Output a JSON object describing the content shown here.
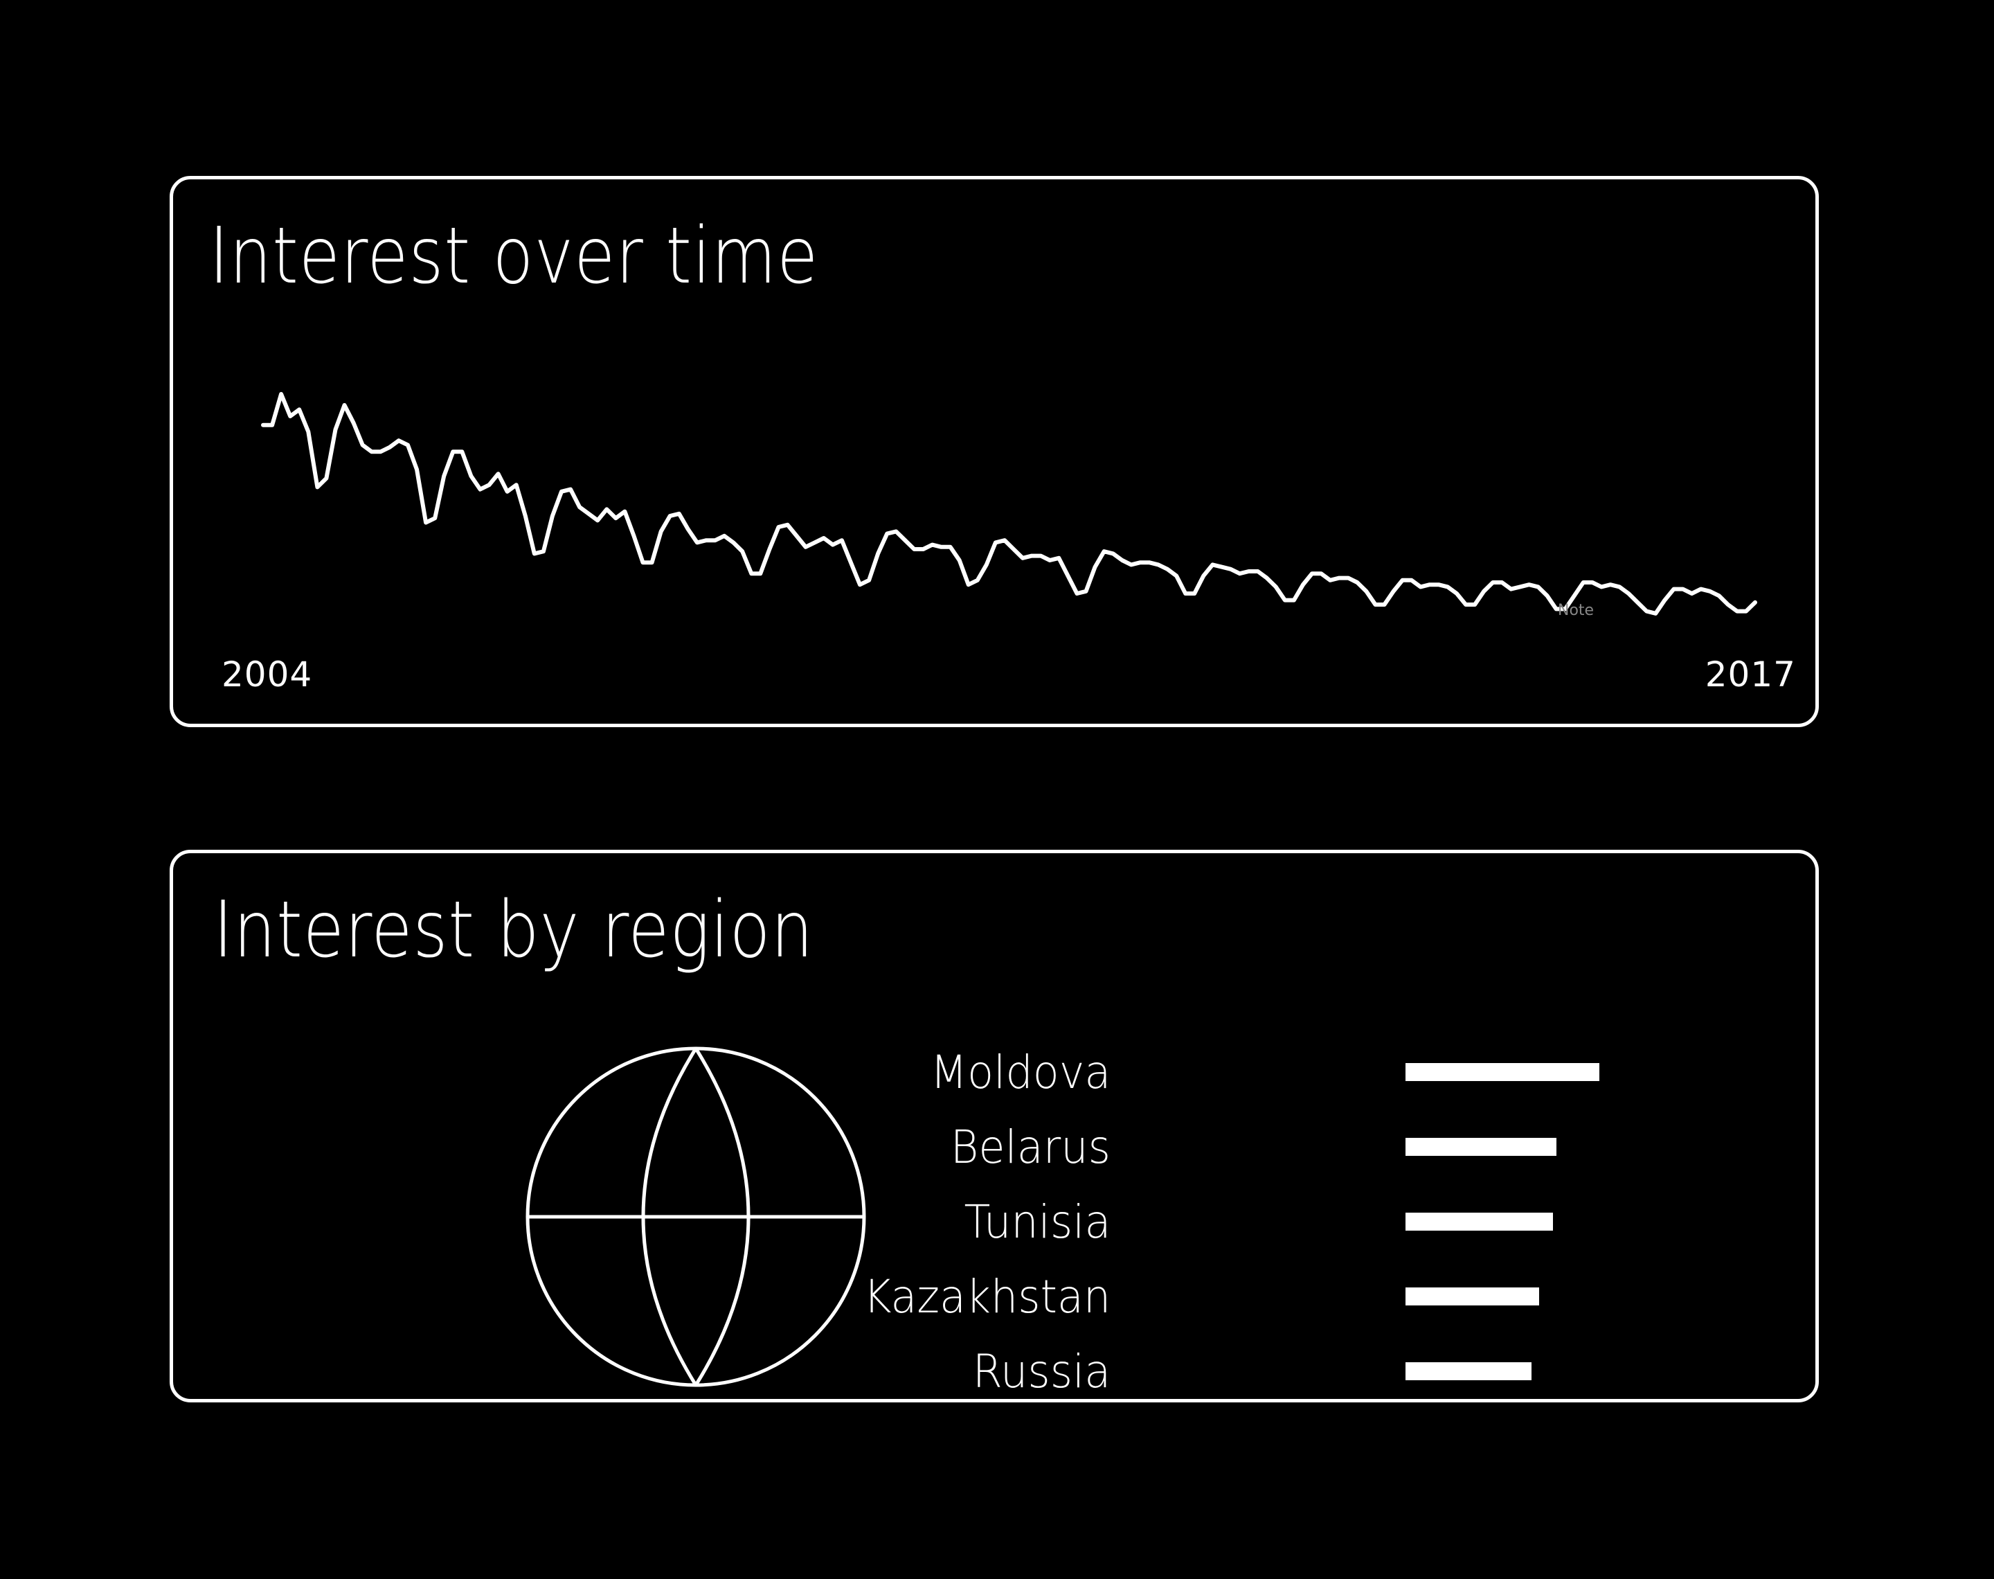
{
  "colors": {
    "background": "#000000",
    "foreground": "#ffffff",
    "note": "#888888"
  },
  "time_panel": {
    "title": "Interest over time",
    "start_label": "2004",
    "end_label": "2017",
    "note_label": "Note"
  },
  "region_panel": {
    "title": "Interest by region",
    "globe_icon": "globe-icon"
  },
  "chart_data": [
    {
      "type": "line",
      "title": "Interest over time",
      "xlim": [
        2004,
        2017
      ],
      "ylim": [
        0,
        100
      ],
      "x_labels": [
        "2004",
        "2017"
      ],
      "series": [
        {
          "values": [
            86,
            86,
            100,
            90,
            93,
            83,
            58,
            62,
            84,
            95,
            87,
            77,
            74,
            74,
            76,
            79,
            77,
            66,
            42,
            44,
            63,
            74,
            74,
            63,
            57,
            59,
            64,
            56,
            59,
            45,
            28,
            29,
            45,
            56,
            57,
            49,
            46,
            43,
            48,
            44,
            47,
            36,
            24,
            24,
            38,
            45,
            46,
            39,
            33,
            34,
            34,
            36,
            33,
            29,
            19,
            19,
            30,
            40,
            41,
            36,
            31,
            33,
            35,
            32,
            34,
            24,
            14,
            16,
            28,
            37,
            38,
            34,
            30,
            30,
            32,
            31,
            31,
            25,
            14,
            16,
            23,
            33,
            34,
            30,
            26,
            27,
            27,
            25,
            26,
            18,
            10,
            11,
            22,
            29,
            28,
            25,
            23,
            24,
            24,
            23,
            21,
            18,
            10,
            10,
            18,
            23,
            22,
            21,
            19,
            20,
            20,
            17,
            13,
            7,
            7,
            14,
            19,
            19,
            16,
            17,
            17,
            15,
            11,
            5,
            5,
            11,
            16,
            16,
            13,
            14,
            14,
            13,
            10,
            5,
            5,
            11,
            15,
            15,
            12,
            13,
            14,
            13,
            9,
            3,
            3,
            9,
            15,
            15,
            13,
            14,
            13,
            10,
            6,
            2,
            1,
            7,
            12,
            12,
            10,
            12,
            11,
            9,
            5,
            2,
            2,
            6
          ]
        }
      ]
    },
    {
      "type": "bar",
      "orientation": "horizontal",
      "categories": [
        "Moldova",
        "Belarus",
        "Tunisia",
        "Kazakhstan",
        "Russia"
      ],
      "values": [
        100,
        78,
        76,
        69,
        65
      ],
      "xlim": [
        0,
        100
      ]
    }
  ]
}
